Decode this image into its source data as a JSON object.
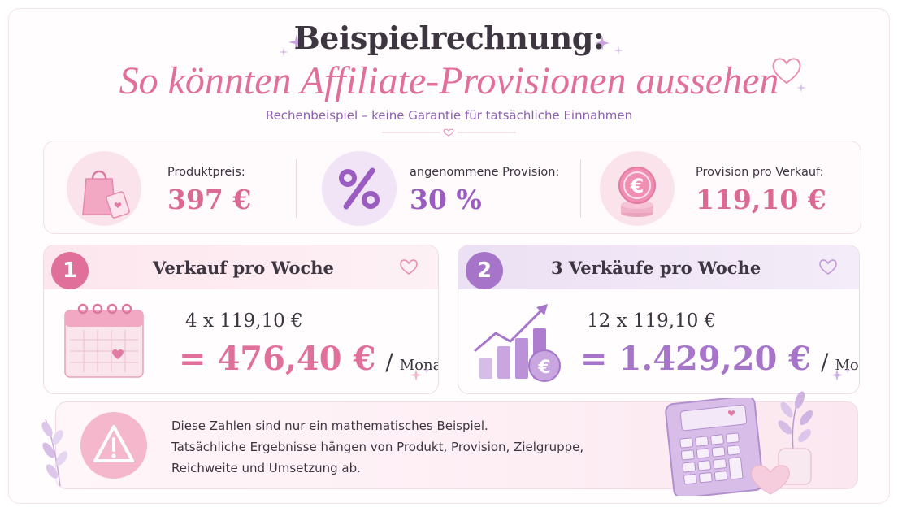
{
  "header": {
    "title": "Beispielrechnung:",
    "headline": "So könnten Affiliate-Provisionen aussehen",
    "subtitle": "Rechenbeispiel – keine Garantie für tatsächliche Einnahmen"
  },
  "stats": [
    {
      "label": "Produktpreis:",
      "value": "397 €",
      "icon": "shopping-bag-icon",
      "color": "#db6a93"
    },
    {
      "label": "angenommene Provision:",
      "value": "30 %",
      "icon": "percent-icon",
      "color": "#9a5cc0"
    },
    {
      "label": "Provision pro Verkauf:",
      "value": "119,10 €",
      "icon": "euro-coins-icon",
      "color": "#db6a93"
    }
  ],
  "scenarios": [
    {
      "number": "1",
      "title": "Verkauf pro Woche",
      "calculation": "4 x 119,10 €",
      "result": "= 476,40 €",
      "slash": "/",
      "unit": "Monat",
      "icon": "calendar-icon",
      "accent": "#e0709a"
    },
    {
      "number": "2",
      "title": "3 Verkäufe pro Woche",
      "calculation": "12 x 119,10 €",
      "result": "= 1.429,20 €",
      "slash": "/",
      "unit": "Monat",
      "icon": "growth-chart-icon",
      "accent": "#a675c9"
    }
  ],
  "disclaimer": {
    "lines": [
      "Diese Zahlen sind nur ein mathematisches Beispiel.",
      "Tatsächliche Ergebnisse hängen von Produkt, Provision, Zielgruppe,",
      "Reichweite und Umsetzung ab."
    ],
    "icon": "warning-icon"
  },
  "colors": {
    "pink": "#e0709a",
    "purple": "#a675c9",
    "text": "#3d3540"
  }
}
